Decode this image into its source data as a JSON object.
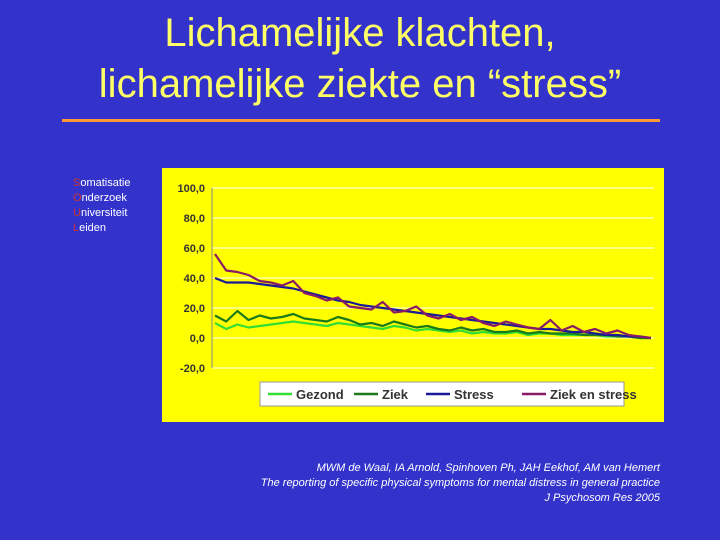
{
  "slide": {
    "title_line1": "Lichamelijke klachten,",
    "title_line2": "lichamelijke ziekte en “stress”",
    "accent_color": "#ff9933",
    "title_color": "#ffff66",
    "background_color": "#3333cc"
  },
  "suol": {
    "lines": [
      {
        "initial": "S",
        "rest": "omatisatie"
      },
      {
        "initial": "O",
        "rest": "nderzoek"
      },
      {
        "initial": "U",
        "rest": "niversiteit"
      },
      {
        "initial": "L",
        "rest": "eiden"
      }
    ]
  },
  "citation": {
    "line1": "MWM de Waal, IA Arnold, Spinhoven Ph, JAH Eekhof, AM van Hemert",
    "line2": "The reporting of specific physical symptoms for mental distress in general practice",
    "line3": "J Psychosom Res 2005"
  },
  "chart_data": {
    "type": "line",
    "ylim": [
      -20,
      100
    ],
    "yticks": [
      "100,0",
      "80,0",
      "60,0",
      "40,0",
      "20,0",
      "0,0",
      "-20,0"
    ],
    "ytick_values": [
      100,
      80,
      60,
      40,
      20,
      0,
      -20
    ],
    "grid": true,
    "legend_position": "bottom",
    "background": "#ffff00",
    "x_count": 40,
    "series": [
      {
        "name": "Gezond",
        "color": "#33dd33",
        "values": [
          10,
          6,
          9,
          7,
          8,
          9,
          10,
          11,
          10,
          9,
          8,
          10,
          9,
          8,
          7,
          6,
          8,
          7,
          5,
          6,
          5,
          4,
          5,
          3,
          4,
          3,
          3,
          4,
          2,
          3,
          3,
          2,
          2,
          2,
          2,
          1,
          1,
          1,
          0,
          0
        ]
      },
      {
        "name": "Ziek",
        "color": "#1a7a1a",
        "values": [
          15,
          11,
          18,
          12,
          15,
          13,
          14,
          16,
          13,
          12,
          11,
          14,
          12,
          9,
          10,
          8,
          11,
          9,
          7,
          8,
          6,
          5,
          7,
          5,
          6,
          4,
          4,
          5,
          3,
          4,
          3,
          3,
          3,
          2,
          2,
          2,
          1,
          1,
          0,
          0
        ]
      },
      {
        "name": "Stress",
        "color": "#1a1a99",
        "values": [
          40,
          37,
          37,
          37,
          36,
          35,
          34,
          33,
          31,
          29,
          27,
          25,
          24,
          22,
          21,
          20,
          19,
          18,
          17,
          16,
          15,
          14,
          13,
          12,
          11,
          10,
          9,
          8,
          7,
          6,
          6,
          5,
          4,
          4,
          3,
          2,
          2,
          1,
          1,
          0
        ]
      },
      {
        "name": "Ziek en stress",
        "color": "#881a66",
        "values": [
          56,
          45,
          44,
          42,
          38,
          37,
          35,
          38,
          30,
          28,
          25,
          27,
          21,
          20,
          19,
          24,
          17,
          18,
          21,
          15,
          13,
          16,
          12,
          14,
          10,
          8,
          11,
          9,
          7,
          6,
          12,
          5,
          8,
          4,
          6,
          3,
          5,
          2,
          1,
          0
        ]
      }
    ]
  }
}
